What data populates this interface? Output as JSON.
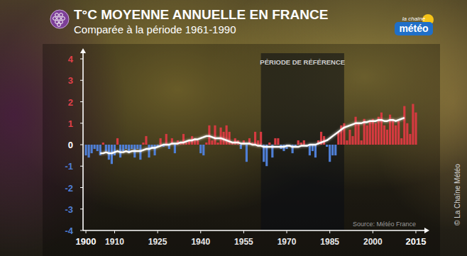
{
  "chart_data": {
    "type": "bar",
    "title": "T°C MOYENNE ANNUELLE EN FRANCE",
    "subtitle": "Comparée à la période 1961-1990",
    "x": [
      1900,
      1901,
      1902,
      1903,
      1904,
      1905,
      1906,
      1907,
      1908,
      1909,
      1910,
      1911,
      1912,
      1913,
      1914,
      1915,
      1916,
      1917,
      1918,
      1919,
      1920,
      1921,
      1922,
      1923,
      1924,
      1925,
      1926,
      1927,
      1928,
      1929,
      1930,
      1931,
      1932,
      1933,
      1934,
      1935,
      1936,
      1937,
      1938,
      1939,
      1940,
      1941,
      1942,
      1943,
      1944,
      1945,
      1946,
      1947,
      1948,
      1949,
      1950,
      1951,
      1952,
      1953,
      1954,
      1955,
      1956,
      1957,
      1958,
      1959,
      1960,
      1961,
      1962,
      1963,
      1964,
      1965,
      1966,
      1967,
      1968,
      1969,
      1970,
      1971,
      1972,
      1973,
      1974,
      1975,
      1976,
      1977,
      1978,
      1979,
      1980,
      1981,
      1982,
      1983,
      1984,
      1985,
      1986,
      1987,
      1988,
      1989,
      1990,
      1991,
      1992,
      1993,
      1994,
      1995,
      1996,
      1997,
      1998,
      1999,
      2000,
      2001,
      2002,
      2003,
      2004,
      2005,
      2006,
      2007,
      2008,
      2009,
      2010,
      2011,
      2012,
      2013,
      2014,
      2015
    ],
    "series": [
      {
        "type": "bar",
        "values": [
          -0.5,
          -0.6,
          -0.4,
          -0.2,
          -0.3,
          -0.5,
          0.1,
          -0.3,
          -0.7,
          -0.9,
          -0.5,
          0.3,
          -0.6,
          -0.3,
          -0.2,
          -0.4,
          -0.2,
          -0.6,
          -0.2,
          -0.7,
          0.1,
          0.4,
          -0.6,
          -0.2,
          -0.5,
          -0.1,
          0.3,
          -0.1,
          0.5,
          -0.2,
          0.3,
          -0.4,
          0.2,
          0.1,
          0.5,
          0.1,
          0.2,
          0.4,
          0.3,
          0.2,
          -0.4,
          -0.5,
          0.1,
          0.9,
          0.2,
          0.9,
          0.1,
          0.8,
          0.6,
          0.9,
          0.6,
          0.1,
          0.3,
          0.2,
          -0.2,
          0.2,
          -0.8,
          0.3,
          0.1,
          0.6,
          0.2,
          0.6,
          -0.8,
          -1.0,
          0.1,
          -0.6,
          0.3,
          0.3,
          -0.2,
          -0.3,
          -0.2,
          -0.1,
          -0.4,
          -0.1,
          0.2,
          0.1,
          0.2,
          -0.1,
          -0.5,
          -0.3,
          -0.6,
          0.2,
          0.6,
          0.4,
          -0.1,
          -0.8,
          -0.5,
          -0.5,
          0.6,
          0.9,
          1.0,
          0.2,
          0.7,
          0.4,
          1.3,
          1.0,
          0.2,
          1.2,
          0.9,
          1.1,
          1.2,
          1.0,
          1.3,
          1.5,
          0.9,
          0.7,
          1.4,
          1.2,
          0.9,
          1.1,
          0.3,
          1.8,
          1.0,
          0.5,
          1.9,
          1.5
        ],
        "colors": [
          "#4f7fd6",
          "#4f7fd6",
          "#4f7fd6",
          "#4f7fd6",
          "#4f7fd6",
          "#4f7fd6",
          "#d63a40",
          "#4f7fd6",
          "#4f7fd6",
          "#4f7fd6",
          "#4f7fd6",
          "#d63a40",
          "#4f7fd6",
          "#4f7fd6",
          "#4f7fd6",
          "#4f7fd6",
          "#4f7fd6",
          "#4f7fd6",
          "#4f7fd6",
          "#4f7fd6",
          "#d63a40",
          "#d63a40",
          "#4f7fd6",
          "#4f7fd6",
          "#4f7fd6",
          "#4f7fd6",
          "#d63a40",
          "#4f7fd6",
          "#d63a40",
          "#4f7fd6",
          "#d63a40",
          "#4f7fd6",
          "#d63a40",
          "#d63a40",
          "#d63a40",
          "#d63a40",
          "#d63a40",
          "#d63a40",
          "#d63a40",
          "#d63a40",
          "#4f7fd6",
          "#4f7fd6",
          "#d63a40",
          "#d63a40",
          "#d63a40",
          "#d63a40",
          "#d63a40",
          "#d63a40",
          "#d63a40",
          "#d63a40",
          "#d63a40",
          "#d63a40",
          "#d63a40",
          "#d63a40",
          "#4f7fd6",
          "#d63a40",
          "#4f7fd6",
          "#d63a40",
          "#d63a40",
          "#d63a40",
          "#d63a40",
          "#d63a40",
          "#4f7fd6",
          "#4f7fd6",
          "#d63a40",
          "#4f7fd6",
          "#d63a40",
          "#d63a40",
          "#4f7fd6",
          "#4f7fd6",
          "#4f7fd6",
          "#4f7fd6",
          "#4f7fd6",
          "#4f7fd6",
          "#d63a40",
          "#d63a40",
          "#d63a40",
          "#4f7fd6",
          "#4f7fd6",
          "#4f7fd6",
          "#4f7fd6",
          "#d63a40",
          "#d63a40",
          "#d63a40",
          "#4f7fd6",
          "#4f7fd6",
          "#4f7fd6",
          "#4f7fd6",
          "#d63a40",
          "#d63a40",
          "#d63a40",
          "#d63a40",
          "#d63a40",
          "#d63a40",
          "#d63a40",
          "#d63a40",
          "#d63a40",
          "#d63a40",
          "#d63a40",
          "#d63a40",
          "#d63a40",
          "#d63a40",
          "#d63a40",
          "#d63a40",
          "#d63a40",
          "#d63a40",
          "#d63a40",
          "#d63a40",
          "#d63a40",
          "#d63a40",
          "#d63a40",
          "#d63a40",
          "#d63a40",
          "#d63a40",
          "#d63a40",
          "#d63a40"
        ]
      },
      {
        "type": "line",
        "color": "#ffffff",
        "values": [
          null,
          null,
          null,
          null,
          null,
          -0.4,
          -0.4,
          -0.35,
          -0.4,
          -0.4,
          -0.35,
          -0.3,
          -0.35,
          -0.35,
          -0.3,
          -0.35,
          -0.3,
          -0.3,
          -0.3,
          -0.3,
          -0.25,
          -0.2,
          -0.2,
          -0.15,
          -0.15,
          -0.1,
          -0.05,
          0,
          0,
          0,
          0.05,
          0.05,
          0.05,
          0.1,
          0.1,
          0.15,
          0.2,
          0.2,
          0.25,
          0.25,
          0.3,
          0.35,
          0.4,
          0.4,
          0.35,
          0.3,
          0.3,
          0.3,
          0.25,
          0.2,
          0.15,
          0.1,
          0.1,
          0.1,
          0.05,
          0.05,
          0.05,
          0.05,
          0,
          0,
          -0.05,
          -0.05,
          -0.1,
          -0.1,
          -0.1,
          -0.1,
          -0.1,
          -0.1,
          -0.1,
          -0.1,
          -0.05,
          -0.05,
          -0.1,
          -0.1,
          -0.1,
          -0.05,
          -0.05,
          -0.05,
          0,
          0,
          0,
          0.05,
          0.1,
          0.15,
          0.2,
          0.3,
          0.4,
          0.5,
          0.6,
          0.7,
          0.8,
          0.85,
          0.9,
          0.95,
          1.0,
          1.0,
          1.0,
          1.05,
          1.05,
          1.1,
          1.1,
          1.1,
          1.15,
          1.15,
          1.1,
          1.1,
          1.15,
          1.15,
          1.1,
          1.15,
          1.2,
          1.25,
          null,
          null,
          null,
          null
        ]
      }
    ],
    "xlim": [
      1899,
      2016
    ],
    "xticks": [
      1900,
      1910,
      1925,
      1940,
      1955,
      1970,
      1985,
      2000,
      2015
    ],
    "ylim": [
      -4,
      4
    ],
    "yticks": [
      -4,
      -3,
      -2,
      -1,
      0,
      1,
      2,
      3,
      4
    ],
    "grid": false,
    "annotations": [
      {
        "text": "PÉRIODE DE RÉFÉRENCE",
        "x_start": 1961,
        "x_end": 1990
      }
    ],
    "source": "Source: Météo France",
    "credit": "© La Chaîne Météo",
    "logo": {
      "line1": "la chaîne",
      "line2": "météo"
    }
  }
}
